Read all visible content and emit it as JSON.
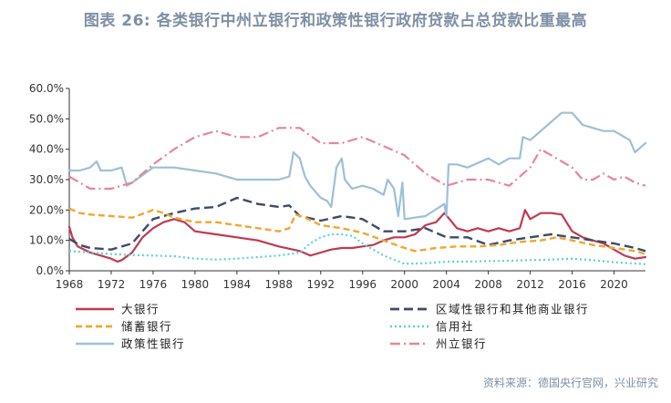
{
  "title": "图表 26: 各类银行中州立银行和政策性银行政府贷款占总贷款比重最高",
  "source": "资料来源：德国央行官网，兴业研究",
  "colors": {
    "title": "#7f8fa6",
    "axis": "#333333"
  },
  "chart_data": {
    "type": "line",
    "title": "图表 26: 各类银行中州立银行和政策性银行政府贷款占总贷款比重最高",
    "xlabel": "",
    "ylabel": "",
    "xlim": [
      1968,
      2023
    ],
    "ylim": [
      0,
      60
    ],
    "y_ticks": [
      "0.0%",
      "10.0%",
      "20.0%",
      "30.0%",
      "40.0%",
      "50.0%",
      "60.0%"
    ],
    "y_tick_values": [
      0,
      10,
      20,
      30,
      40,
      50,
      60
    ],
    "x_ticks": [
      "1968",
      "1972",
      "1976",
      "1980",
      "1984",
      "1988",
      "1992",
      "1996",
      "2000",
      "2004",
      "2008",
      "2012",
      "2016",
      "2020"
    ],
    "x_tick_values": [
      1968,
      1972,
      1976,
      1980,
      1984,
      1988,
      1992,
      1996,
      2000,
      2004,
      2008,
      2012,
      2016,
      2020
    ],
    "grid": false,
    "legend_position": "bottom",
    "series": [
      {
        "name": "大银行",
        "color": "#c0394f",
        "dash": "solid",
        "width": 2.2,
        "x": [
          1968,
          1968.3,
          1968.8,
          1970,
          1971,
          1972,
          1972.6,
          1973,
          1974,
          1975,
          1976,
          1977,
          1978,
          1979,
          1980,
          1982,
          1984,
          1986,
          1988,
          1990,
          1991,
          1992,
          1993,
          1994,
          1995,
          1996,
          1997,
          1998,
          1999,
          2000,
          2001,
          2002,
          2003,
          2003.8,
          2004.3,
          2005,
          2006,
          2007,
          2008,
          2009,
          2010,
          2011,
          2011.5,
          2012,
          2013,
          2014,
          2015,
          2016,
          2017,
          2018,
          2019,
          2020,
          2021,
          2022,
          2023
        ],
        "y": [
          14.5,
          11,
          8,
          6,
          5,
          4,
          3,
          3.5,
          6,
          11,
          14,
          16,
          17,
          16,
          13,
          12,
          11,
          10,
          8,
          6.5,
          5,
          6,
          7,
          7.5,
          7.5,
          8,
          8.5,
          10,
          11,
          11,
          12,
          15,
          16,
          19,
          17,
          14,
          13,
          14,
          13,
          14,
          13,
          14,
          20,
          17,
          19,
          19,
          18.5,
          13,
          11,
          10,
          9,
          7,
          5,
          4,
          4.5
        ]
      },
      {
        "name": "区域性银行和其他商业银行",
        "color": "#3d4a6b",
        "dash": "10,5",
        "width": 2.4,
        "x": [
          1968,
          1969,
          1970,
          1972,
          1974,
          1976,
          1978,
          1980,
          1982,
          1984,
          1986,
          1988,
          1989,
          1990,
          1992,
          1994,
          1996,
          1998,
          2000,
          2002,
          2004,
          2006,
          2008,
          2010,
          2012,
          2014,
          2016,
          2018,
          2020,
          2022,
          2023
        ],
        "y": [
          10.5,
          8.5,
          7.5,
          7,
          9,
          17,
          19,
          20.5,
          21,
          24,
          22,
          21,
          21.5,
          18,
          16.5,
          18,
          17,
          13,
          13,
          14,
          11,
          11,
          8.5,
          10,
          11,
          12,
          11,
          10,
          9,
          7.5,
          6.5
        ]
      },
      {
        "name": "储蓄银行",
        "color": "#f0a72e",
        "dash": "7,4",
        "width": 2.4,
        "x": [
          1968,
          1969,
          1970,
          1972,
          1974,
          1976,
          1977,
          1978,
          1980,
          1982,
          1984,
          1986,
          1988,
          1989,
          1989.6,
          1990.5,
          1992,
          1994,
          1996,
          1998,
          2000,
          2001,
          2003,
          2005,
          2007,
          2009,
          2011,
          2013,
          2014.5,
          2016,
          2018,
          2020,
          2022,
          2023
        ],
        "y": [
          20.5,
          19,
          18.5,
          18,
          17.5,
          20,
          19,
          17.5,
          16,
          16,
          15,
          14,
          13,
          14,
          18.5,
          17.5,
          15,
          14,
          12.5,
          10,
          7.5,
          6.5,
          7.5,
          8,
          8,
          8.5,
          9.5,
          10,
          11,
          10,
          8.5,
          7.5,
          6.5,
          5.5
        ]
      },
      {
        "name": "信用社",
        "color": "#5bd0d9",
        "dash": "2,3",
        "width": 2.2,
        "x": [
          1968,
          1970,
          1972,
          1974,
          1976,
          1978,
          1980,
          1982,
          1984,
          1986,
          1988,
          1990,
          1991,
          1992,
          1993,
          1994,
          1995,
          1996,
          1998,
          2000,
          2002,
          2004,
          2006,
          2008,
          2010,
          2012,
          2014,
          2016,
          2018,
          2020,
          2023
        ],
        "y": [
          6.5,
          6,
          5.5,
          5.2,
          5,
          4.8,
          4,
          3.7,
          4,
          4.5,
          5,
          6,
          9,
          11,
          12,
          12,
          11.5,
          9,
          5,
          2.3,
          2.5,
          3,
          3,
          3.2,
          3.3,
          3.5,
          3.7,
          4,
          3.5,
          2.8,
          2.2
        ]
      },
      {
        "name": "政策性银行",
        "color": "#9dbfd8",
        "dash": "solid",
        "width": 2.2,
        "x": [
          1968,
          1969,
          1970,
          1970.6,
          1971,
          1972,
          1973,
          1973.5,
          1974,
          1976,
          1978,
          1980,
          1982,
          1984,
          1986,
          1988,
          1989,
          1989.4,
          1990,
          1990.5,
          1991,
          1992,
          1992.6,
          1993,
          1993.5,
          1994,
          1994.3,
          1995,
          1996,
          1997,
          1998,
          1998.4,
          1999,
          1999.4,
          1999.8,
          2000,
          2002,
          2003.8,
          2004,
          2004.2,
          2005,
          2006,
          2008,
          2009,
          2010,
          2011,
          2011.3,
          2012,
          2013,
          2014,
          2015,
          2016,
          2017,
          2018,
          2019,
          2020,
          2021,
          2021.5,
          2022,
          2023
        ],
        "y": [
          33,
          33,
          34,
          36,
          33,
          33,
          34,
          28,
          29,
          34,
          34,
          33,
          32,
          30,
          30,
          30,
          31,
          39,
          37,
          31,
          28,
          24,
          23,
          21,
          34,
          37,
          30,
          27,
          28,
          27,
          25,
          30,
          27,
          18,
          29,
          17,
          18,
          22,
          18,
          35,
          35,
          34,
          37,
          35,
          37,
          37,
          44,
          43,
          46,
          49,
          52,
          52,
          48,
          47,
          46,
          46,
          44,
          43,
          39,
          42
        ]
      },
      {
        "name": "州立银行",
        "color": "#e8839c",
        "dash": "11,4,2,4",
        "width": 2.2,
        "x": [
          1968,
          1969,
          1970,
          1972,
          1974,
          1976,
          1978,
          1980,
          1982,
          1984,
          1986,
          1988,
          1990,
          1992,
          1994,
          1996,
          1998,
          2000,
          2002,
          2004,
          2006,
          2008,
          2010,
          2012,
          2013,
          2014,
          2015,
          2016,
          2017,
          2018,
          2019,
          2020,
          2021,
          2022,
          2023
        ],
        "y": [
          31,
          29,
          27,
          27,
          29,
          35,
          40,
          44,
          46,
          44,
          44,
          47,
          47,
          42,
          42,
          44,
          41,
          38,
          32,
          28,
          30,
          30,
          28,
          34,
          40,
          38,
          36,
          34,
          30,
          30,
          32,
          30,
          31,
          29,
          28
        ]
      }
    ]
  }
}
